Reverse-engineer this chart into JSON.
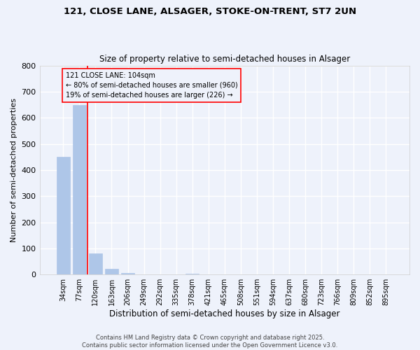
{
  "title": "121, CLOSE LANE, ALSAGER, STOKE-ON-TRENT, ST7 2UN",
  "subtitle": "Size of property relative to semi-detached houses in Alsager",
  "xlabel": "Distribution of semi-detached houses by size in Alsager",
  "ylabel": "Number of semi-detached properties",
  "categories": [
    "34sqm",
    "77sqm",
    "120sqm",
    "163sqm",
    "206sqm",
    "249sqm",
    "292sqm",
    "335sqm",
    "378sqm",
    "421sqm",
    "465sqm",
    "508sqm",
    "551sqm",
    "594sqm",
    "637sqm",
    "680sqm",
    "723sqm",
    "766sqm",
    "809sqm",
    "852sqm",
    "895sqm"
  ],
  "values": [
    450,
    648,
    80,
    22,
    5,
    0,
    0,
    0,
    2,
    0,
    0,
    0,
    0,
    0,
    0,
    0,
    0,
    0,
    0,
    0,
    0
  ],
  "bar_color": "#aec6e8",
  "bar_edgecolor": "#aec6e8",
  "red_line_x": 1.5,
  "red_line_label": "121 CLOSE LANE: 104sqm",
  "annotation_smaller": "← 80% of semi-detached houses are smaller (960)",
  "annotation_larger": "19% of semi-detached houses are larger (226) →",
  "ylim": [
    0,
    800
  ],
  "yticks": [
    0,
    100,
    200,
    300,
    400,
    500,
    600,
    700,
    800
  ],
  "background_color": "#eef2fb",
  "grid_color": "#ffffff",
  "footer": "Contains HM Land Registry data © Crown copyright and database right 2025.\nContains public sector information licensed under the Open Government Licence v3.0.",
  "title_fontsize": 9.5,
  "subtitle_fontsize": 8.5,
  "ylabel_fontsize": 8,
  "xlabel_fontsize": 8.5,
  "tick_fontsize": 7,
  "annotation_fontsize": 7,
  "footer_fontsize": 6
}
